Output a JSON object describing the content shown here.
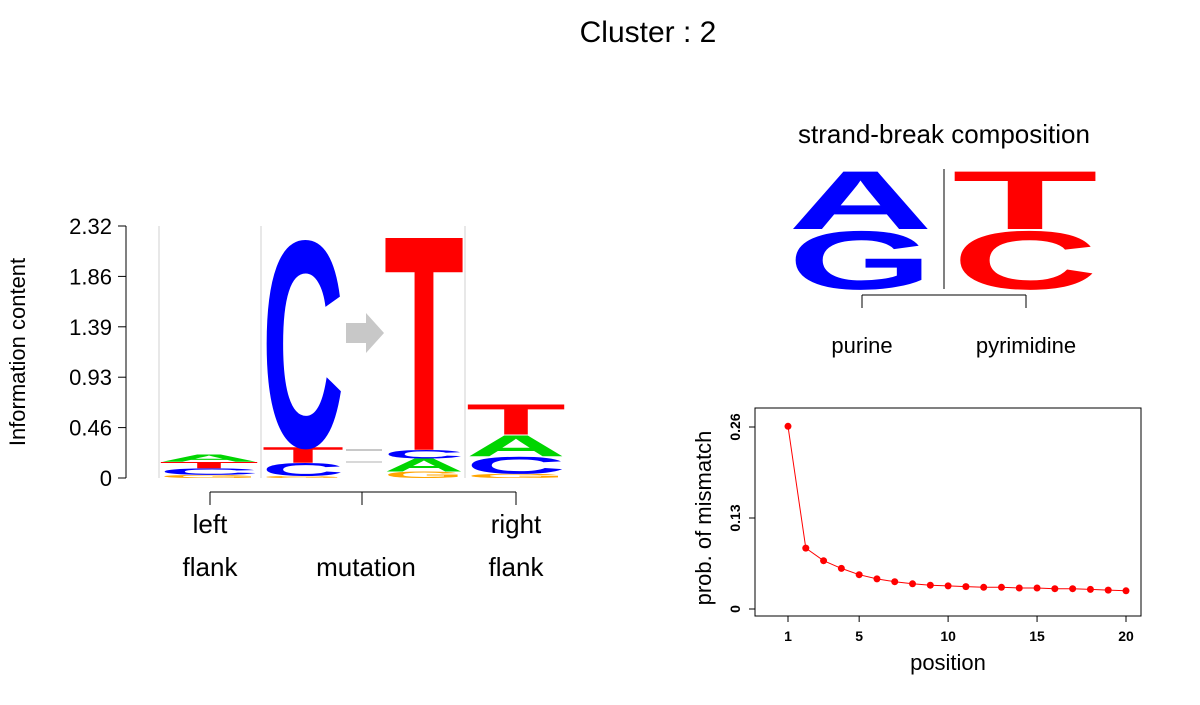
{
  "title": "Cluster : 2",
  "colors": {
    "A": "#00d500",
    "C": "#0000ff",
    "G": "#ffa500",
    "T": "#ff0000",
    "purine": "#0000ff",
    "pyrimidine": "#ff0000",
    "arrow": "#c8c8c8",
    "mismatch": "#ff0000"
  },
  "chart_data": [
    {
      "type": "sequence-logo",
      "ylabel": "Information content",
      "yticks": [
        "0",
        "0.46",
        "0.93",
        "1.39",
        "1.86",
        "2.32"
      ],
      "ylim": [
        0,
        2.32
      ],
      "positions": [
        {
          "name": "left-flank",
          "stack": [
            {
              "letter": "G",
              "value": 0.03
            },
            {
              "letter": "C",
              "value": 0.06
            },
            {
              "letter": "T",
              "value": 0.06
            },
            {
              "letter": "A",
              "value": 0.07
            }
          ]
        },
        {
          "name": "mutation-ref",
          "stack": [
            {
              "letter": "G",
              "value": 0.02
            },
            {
              "letter": "C",
              "value": 0.12
            },
            {
              "letter": "T",
              "value": 0.15
            },
            {
              "letter": "C",
              "value": 1.96
            }
          ]
        },
        {
          "name": "mutation-alt",
          "stack": [
            {
              "letter": "G",
              "value": 0.06
            },
            {
              "letter": "A",
              "value": 0.12
            },
            {
              "letter": "C",
              "value": 0.08
            },
            {
              "letter": "T",
              "value": 2.04
            }
          ]
        },
        {
          "name": "right-flank",
          "stack": [
            {
              "letter": "G",
              "value": 0.04
            },
            {
              "letter": "C",
              "value": 0.16
            },
            {
              "letter": "A",
              "value": 0.2
            },
            {
              "letter": "T",
              "value": 0.29
            }
          ]
        }
      ],
      "xlabels": [
        {
          "lines": [
            "left",
            "flank"
          ]
        },
        {
          "lines": [
            "mutation"
          ]
        },
        {
          "lines": [
            "right",
            "flank"
          ]
        }
      ]
    },
    {
      "type": "sequence-logo",
      "title": "strand-break composition",
      "groups": [
        {
          "label": "purine",
          "stack": [
            {
              "letter": "G",
              "value": 0.5
            },
            {
              "letter": "A",
              "value": 0.5
            }
          ]
        },
        {
          "label": "pyrimidine",
          "stack": [
            {
              "letter": "C",
              "value": 0.5
            },
            {
              "letter": "T",
              "value": 0.5
            }
          ]
        }
      ]
    },
    {
      "type": "line",
      "xlabel": "position",
      "ylabel": "prob. of mismatch",
      "xticks": [
        "1",
        "5",
        "10",
        "15",
        "20"
      ],
      "yticks": [
        "0",
        "0.13",
        "0.26"
      ],
      "xlim": [
        1,
        20
      ],
      "ylim": [
        0,
        0.26
      ],
      "x": [
        1,
        2,
        3,
        4,
        5,
        6,
        7,
        8,
        9,
        10,
        11,
        12,
        13,
        14,
        15,
        16,
        17,
        18,
        19,
        20
      ],
      "y": [
        0.261,
        0.087,
        0.069,
        0.058,
        0.049,
        0.043,
        0.039,
        0.036,
        0.034,
        0.033,
        0.032,
        0.031,
        0.031,
        0.03,
        0.03,
        0.029,
        0.029,
        0.028,
        0.027,
        0.026
      ]
    }
  ]
}
